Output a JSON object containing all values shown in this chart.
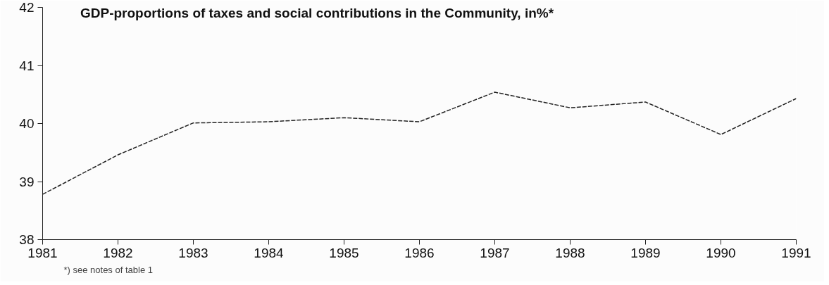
{
  "chart_data": {
    "type": "line",
    "title": "GDP-proportions of taxes and social contributions in the Community, in%*",
    "x": [
      1981,
      1982,
      1983,
      1984,
      1985,
      1986,
      1987,
      1988,
      1989,
      1990,
      1991
    ],
    "series": [
      {
        "color": "#222222",
        "values": [
          38.78,
          39.46,
          40.01,
          40.03,
          40.1,
          40.03,
          40.54,
          40.27,
          40.37,
          39.81,
          40.43
        ]
      }
    ],
    "xlim": [
      1981,
      1991
    ],
    "xticks": [
      1981,
      1982,
      1983,
      1984,
      1985,
      1986,
      1987,
      1988,
      1989,
      1990,
      1991
    ],
    "ylim": [
      38,
      42
    ],
    "yticks": [
      38,
      39,
      40,
      41,
      42
    ],
    "grid": false,
    "line_style": "dashed",
    "annotations": [
      "*) see notes of table 1"
    ]
  }
}
